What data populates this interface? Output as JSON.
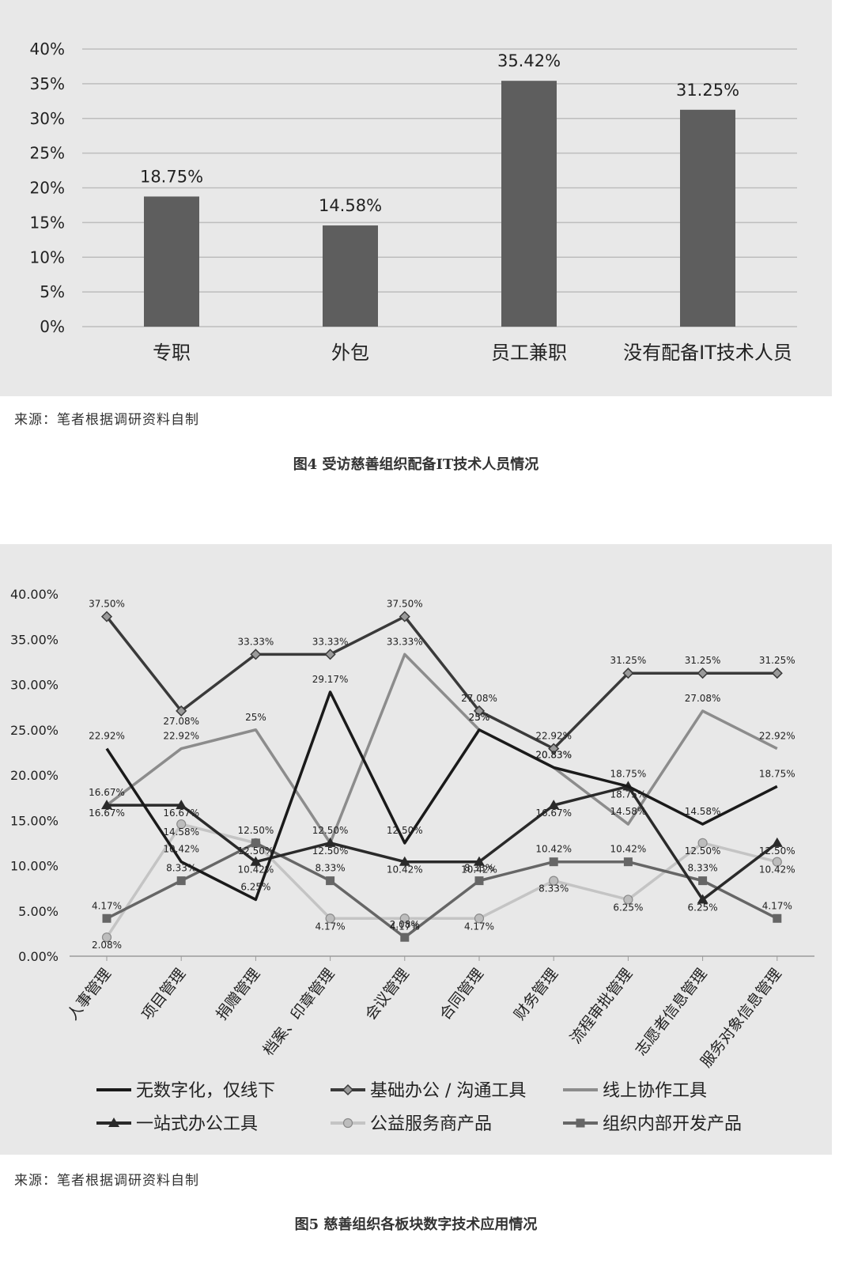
{
  "chart_data": [
    {
      "type": "bar",
      "categories": [
        "专职",
        "外包",
        "员工兼职",
        "没有配备IT技术人员"
      ],
      "values": [
        18.75,
        14.58,
        35.42,
        31.25
      ],
      "value_labels": [
        "18.75%",
        "14.58%",
        "35.42%",
        "31.25%"
      ],
      "y_ticks": [
        "0%",
        "5%",
        "10%",
        "15%",
        "20%",
        "25%",
        "30%",
        "35%",
        "40%"
      ],
      "ylim": [
        0,
        40
      ],
      "grid": true,
      "colors": {
        "bar": "#5e5e5e",
        "grid": "#bdbdbd"
      }
    },
    {
      "type": "line",
      "categories": [
        "人事管理",
        "项目管理",
        "捐赠管理",
        "档案、印章管理",
        "会议管理",
        "合同管理",
        "财务管理",
        "流程审批管理",
        "志愿者信息管理",
        "服务对象信息管理"
      ],
      "y_ticks": [
        "0.00%",
        "5.00%",
        "10.00%",
        "15.00%",
        "20.00%",
        "25.00%",
        "30.00%",
        "35.00%",
        "40.00%"
      ],
      "ylim": [
        0,
        40
      ],
      "grid": false,
      "legend_position": "bottom",
      "series": [
        {
          "name": "无数字化，仅线下",
          "values": [
            22.92,
            10.42,
            6.25,
            29.17,
            12.5,
            25,
            20.83,
            18.75,
            14.58,
            18.75
          ],
          "labels": [
            "22.92%",
            "10.42%",
            "6.25%",
            "29.17%",
            "12.50%",
            "25%",
            "20.83%",
            "18.75%",
            "14.58%",
            "18.75%"
          ],
          "color": "#1a1a1a",
          "marker": "none"
        },
        {
          "name": "基础办公 / 沟通工具",
          "values": [
            37.5,
            27.08,
            33.33,
            33.33,
            37.5,
            27.08,
            22.92,
            31.25,
            31.25,
            31.25
          ],
          "labels": [
            "37.50%",
            "27.08%",
            "33.33%",
            "33.33%",
            "37.50%",
            "27.08%",
            "22.92%",
            "31.25%",
            "31.25%",
            "31.25%"
          ],
          "color": "#3a3a3a",
          "marker": "diamond"
        },
        {
          "name": "线上协作工具",
          "values": [
            16.67,
            22.92,
            25,
            12.5,
            33.33,
            25,
            20.83,
            14.58,
            27.08,
            22.92
          ],
          "labels": [
            "16.67%",
            "22.92%",
            "25%",
            "12.50%",
            "33.33%",
            "25%",
            "20.83%",
            "14.58%",
            "27.08%",
            "22.92%"
          ],
          "color": "#8c8c8c",
          "marker": "none"
        },
        {
          "name": "一站式办公工具",
          "values": [
            16.67,
            16.67,
            10.42,
            12.5,
            10.42,
            10.42,
            16.67,
            18.75,
            6.25,
            12.5
          ],
          "labels": [
            "16.67%",
            "16.67%",
            "10.42%",
            "12.50%",
            "10.42%",
            "10.42%",
            "16.67%",
            "18.75%",
            "6.25%",
            "12.50%"
          ],
          "color": "#2a2a2a",
          "marker": "triangle"
        },
        {
          "name": "公益服务商产品",
          "values": [
            2.08,
            14.58,
            12.5,
            4.17,
            4.17,
            4.17,
            8.33,
            6.25,
            12.5,
            10.42
          ],
          "labels": [
            "2.08%",
            "14.58%",
            "12.50%",
            "4.17%",
            "4.17%",
            "4.17%",
            "8.33%",
            "6.25%",
            "12.50%",
            "10.42%"
          ],
          "color": "#c4c4c4",
          "marker": "circle"
        },
        {
          "name": "组织内部开发产品",
          "values": [
            4.17,
            8.33,
            12.5,
            8.33,
            2.08,
            8.33,
            10.42,
            10.42,
            8.33,
            4.17
          ],
          "labels": [
            "4.17%",
            "8.33%",
            "12.50%",
            "8.33%",
            "2.08%",
            "8.33%",
            "10.42%",
            "10.42%",
            "8.33%",
            "4.17%"
          ],
          "color": "#666666",
          "marker": "square"
        }
      ]
    }
  ],
  "source_1": "来源：笔者根据调研资料自制",
  "caption_1": "图4  受访慈善组织配备IT技术人员情况",
  "source_2": "来源：笔者根据调研资料自制",
  "caption_2": "图5  慈善组织各板块数字技术应用情况"
}
